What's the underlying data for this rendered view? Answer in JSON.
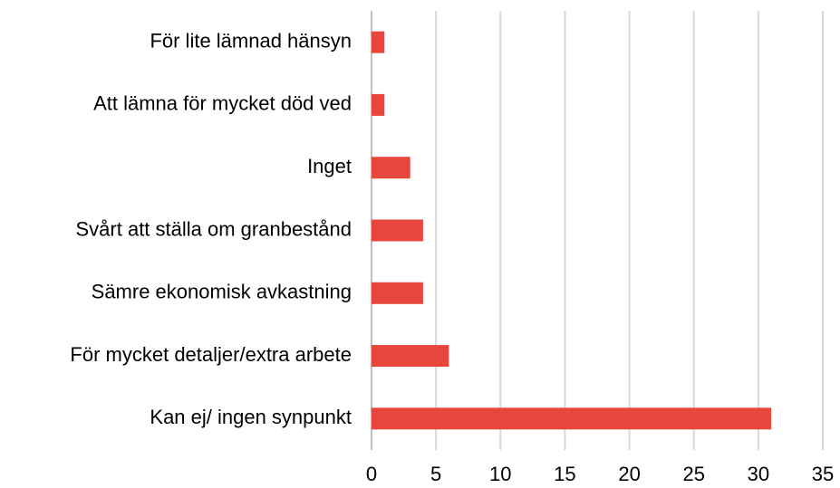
{
  "chart_data": {
    "type": "bar",
    "orientation": "horizontal",
    "categories": [
      "För lite lämnad hänsyn",
      "Att lämna för mycket död ved",
      "Inget",
      "Svårt att ställa om granbestånd",
      "Sämre ekonomisk avkastning",
      "För mycket detaljer/extra arbete",
      "Kan ej/ ingen synpunkt"
    ],
    "values": [
      1,
      1,
      3,
      4,
      4,
      6,
      31
    ],
    "color": "#e8453c",
    "xlim": [
      0,
      35
    ],
    "xticks": [
      0,
      5,
      10,
      15,
      20,
      25,
      30,
      35
    ],
    "grid": true
  }
}
